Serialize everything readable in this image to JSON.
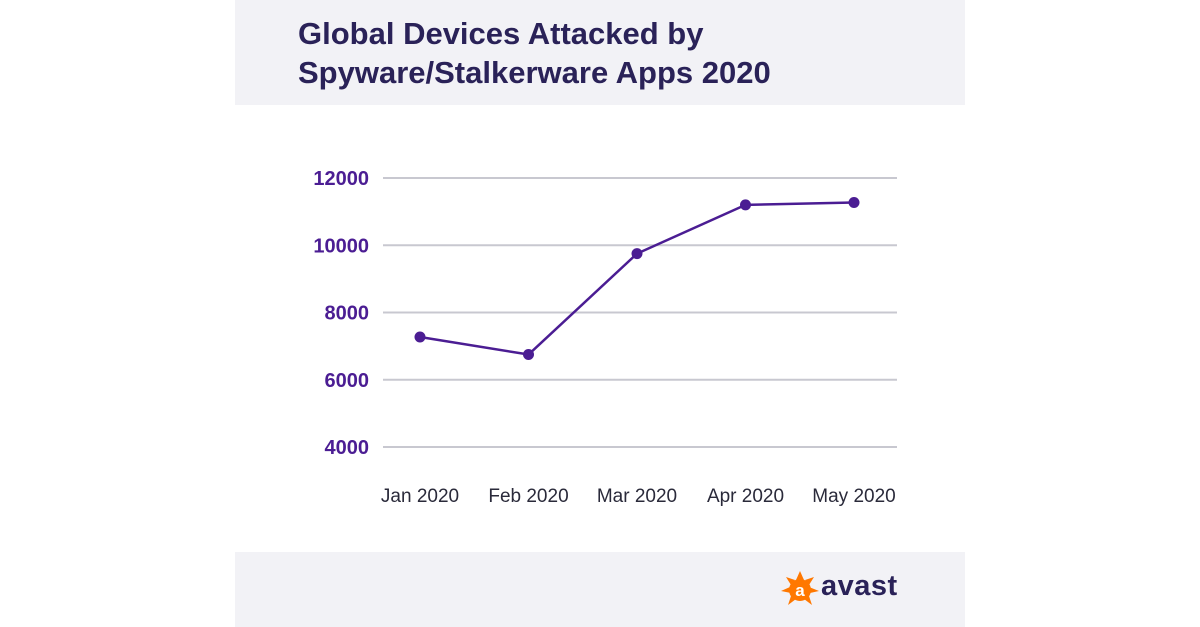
{
  "title": {
    "line1": "Global Devices Attacked by",
    "line2": "Spyware/Stalkerware Apps 2020"
  },
  "brand": {
    "name": "avast",
    "accent": "#ff7800"
  },
  "colors": {
    "line": "#4b1d93",
    "grid": "#c8c8d0",
    "title": "#2a2258",
    "panel_bg": "#f2f2f6"
  },
  "chart_data": {
    "type": "line",
    "categories": [
      "Jan 2020",
      "Feb 2020",
      "Mar 2020",
      "Apr 2020",
      "May 2020"
    ],
    "series": [
      {
        "values": [
          7270,
          6750,
          9750,
          11200,
          11270
        ]
      }
    ],
    "yticks": [
      4000,
      6000,
      8000,
      10000,
      12000
    ],
    "ylim": [
      4000,
      12000
    ],
    "grid": true,
    "legend": "none"
  }
}
